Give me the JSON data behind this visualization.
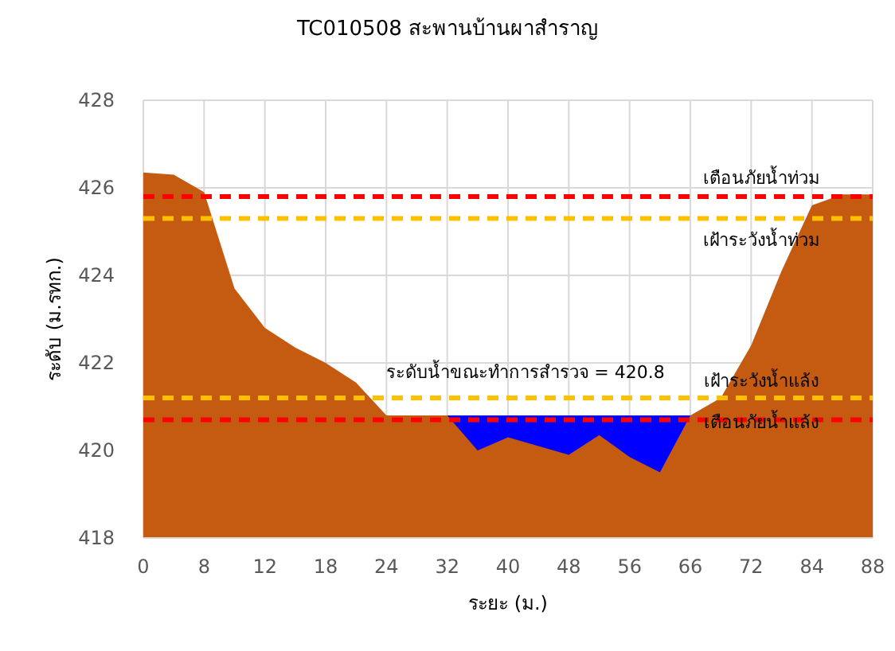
{
  "chart_data": {
    "type": "area",
    "title": "TC010508 สะพานบ้านผาสำราญ",
    "xlabel": "ระยะ (ม.)",
    "ylabel": "ระดับ (ม.รทก.)",
    "categories": [
      "0",
      null,
      "8",
      null,
      "12",
      null,
      "18",
      null,
      "24",
      null,
      "32",
      null,
      "40",
      null,
      "48",
      null,
      "56",
      null,
      "66",
      null,
      "72",
      null,
      "84",
      null,
      "88"
    ],
    "series": [
      {
        "color": "#0000ff",
        "values": [
          null,
          null,
          null,
          null,
          null,
          null,
          null,
          null,
          null,
          null,
          420.8,
          420.8,
          420.8,
          420.8,
          420.8,
          420.8,
          420.8,
          420.8,
          420.8,
          null,
          null,
          null,
          null,
          null,
          null
        ]
      },
      {
        "color": "#c55a11",
        "values": [
          426.35,
          426.3,
          425.9,
          423.7,
          422.8,
          422.35,
          422.0,
          421.55,
          420.8,
          420.8,
          420.8,
          420.0,
          420.3,
          420.1,
          419.9,
          420.35,
          419.85,
          419.5,
          420.8,
          421.2,
          422.4,
          424.1,
          425.6,
          425.85,
          425.85
        ]
      }
    ],
    "ylim": [
      418,
      428
    ],
    "yticks": [
      418,
      420,
      422,
      424,
      426,
      428
    ],
    "grid": true,
    "ref_lines": [
      {
        "axis": "y",
        "value": 425.8,
        "label": "เตือนภัยน้ำท่วม",
        "color": "#ff0000",
        "line_style": "dashed"
      },
      {
        "axis": "y",
        "value": 425.3,
        "label": "เฝ้าระวังน้ำท่วม",
        "color": "#ffc000",
        "line_style": "dashed"
      },
      {
        "axis": "y",
        "value": 421.2,
        "label": "เฝ้าระวังน้ำแล้ง",
        "color": "#ffc000",
        "line_style": "dashed"
      },
      {
        "axis": "y",
        "value": 420.7,
        "label": "เตือนภัยน้ำแล้ง",
        "color": "#ff0000",
        "line_style": "dashed"
      }
    ],
    "annotations": [
      "ระดับน้ำขณะทำการสำรวจ = 420.8"
    ]
  }
}
